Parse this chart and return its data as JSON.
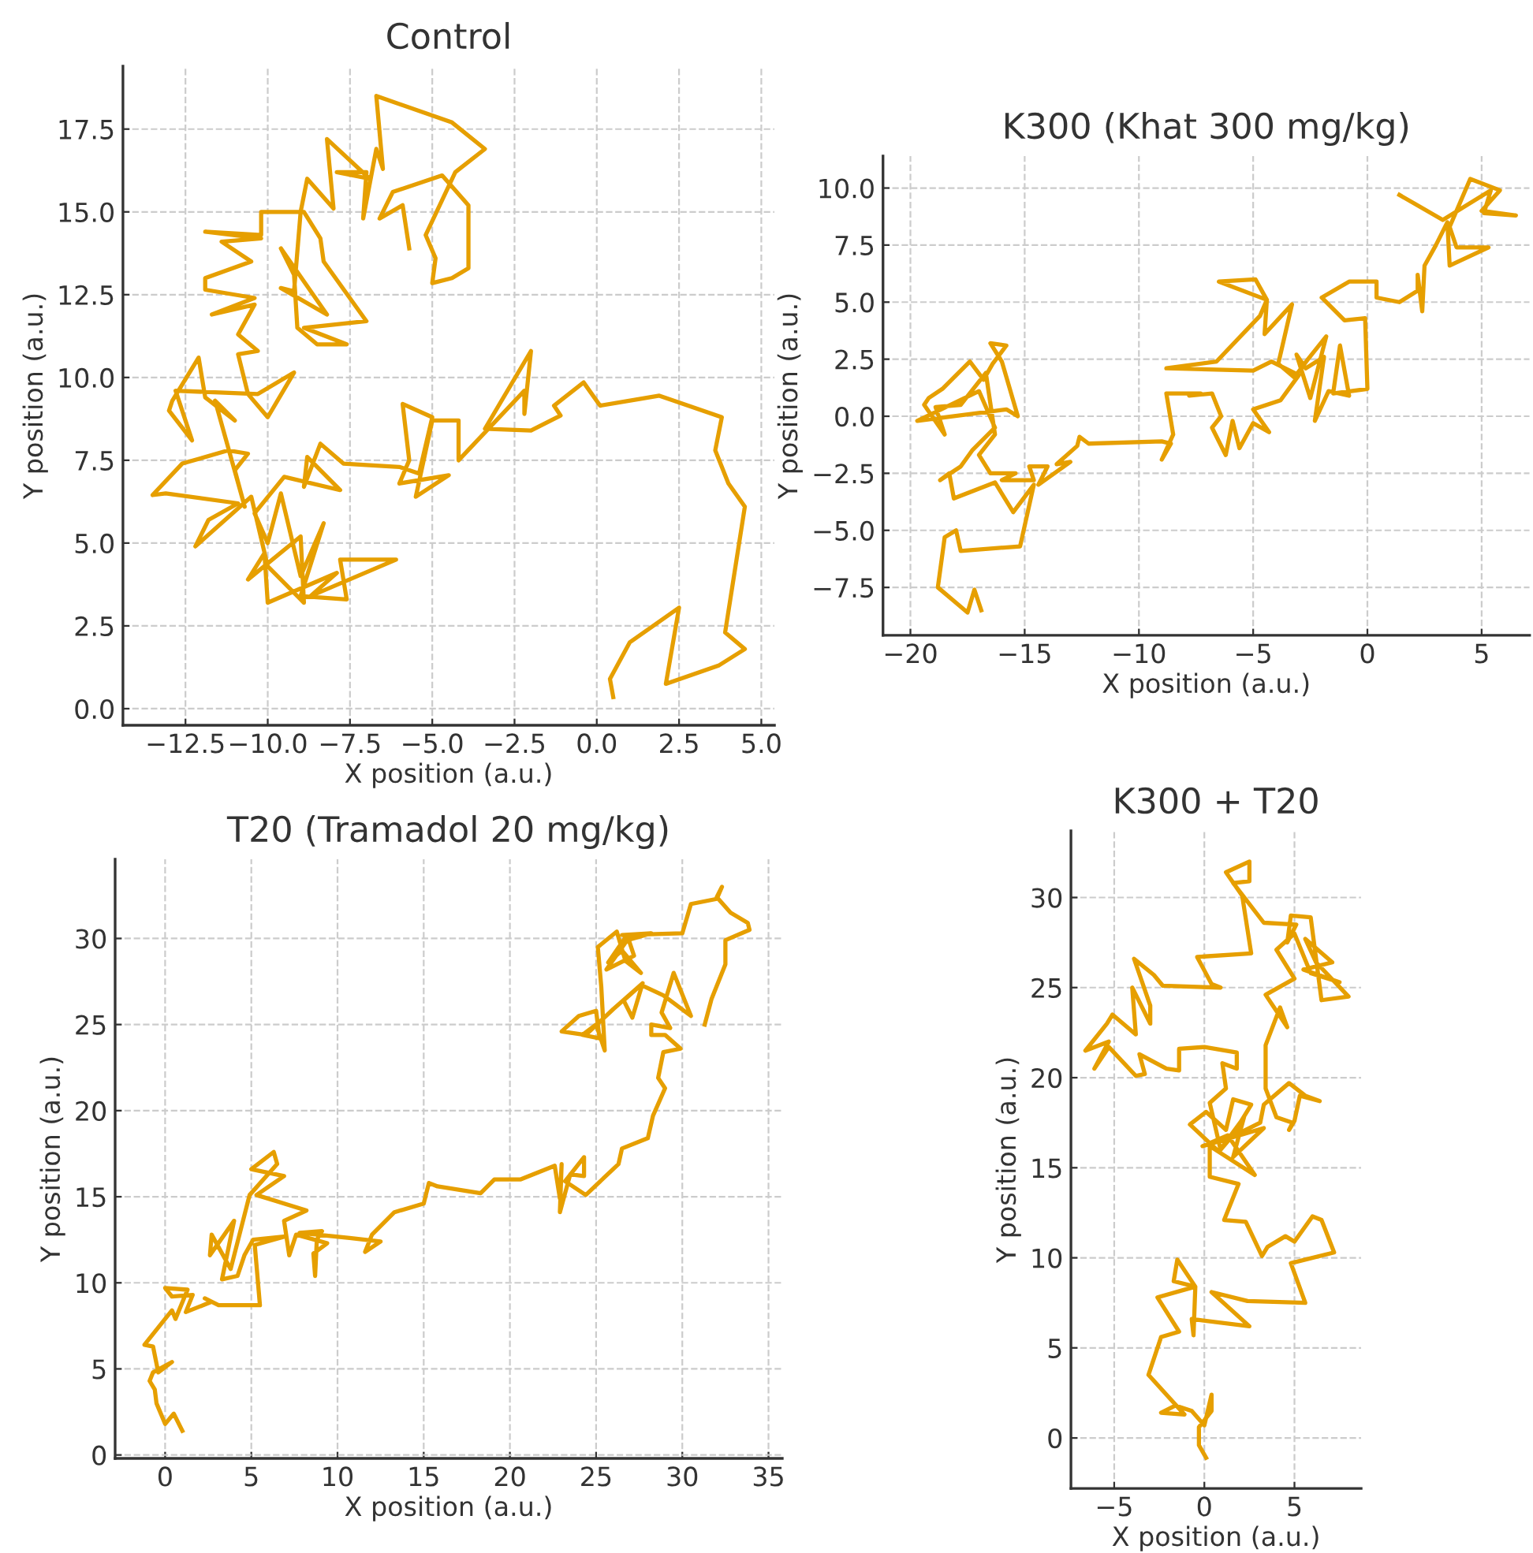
{
  "chart_data": [
    {
      "type": "line",
      "title": "Control",
      "xlabel": "X position (a.u.)",
      "ylabel": "Y position (a.u.)",
      "grid": true,
      "line_style": "solid",
      "xlim": [
        -14.4,
        5.4
      ],
      "ylim": [
        -0.5,
        19.4
      ],
      "xticks": [
        {
          "value": -12.5,
          "label": "−12.5"
        },
        {
          "value": -10.0,
          "label": "−10.0"
        },
        {
          "value": -7.5,
          "label": "−7.5"
        },
        {
          "value": -5.0,
          "label": "−5.0"
        },
        {
          "value": -2.5,
          "label": "−2.5"
        },
        {
          "value": 0,
          "label": "0.0"
        },
        2.5,
        {
          "value": 5,
          "label": "5.0"
        }
      ],
      "yticks": [
        {
          "value": 0,
          "label": "0.0"
        },
        2.5,
        {
          "value": 5,
          "label": "5.0"
        },
        7.5,
        {
          "value": 10,
          "label": "10.0"
        },
        12.5,
        {
          "value": 15,
          "label": "15.0"
        },
        17.5
      ],
      "series": [
        {
          "color": "#e69f00",
          "x": [
            0.5,
            0.4,
            1.0,
            2.5,
            2.1,
            3.7,
            4.5,
            3.9,
            4.5,
            4.0,
            3.6,
            3.8,
            1.9,
            0.1,
            -0.4,
            -1.3,
            -1.1,
            -2.0,
            -3.4,
            -2.0,
            -2.2,
            -2.2,
            -4.2,
            -4.2,
            -5.0,
            -5.5,
            -4.5,
            -6.0,
            -5.7,
            -5.9,
            -5.0,
            -5.4,
            -6.0,
            -7.7,
            -8.4,
            -8.9,
            -8.8,
            -7.8,
            -9.5,
            -10.4,
            -10.0,
            -9.6,
            -9.0,
            -8.3,
            -9.0,
            -7.6,
            -7.8,
            -6.1,
            -8.7,
            -7.9,
            -10.0,
            -10.1,
            -10.6,
            -9.0,
            -8.9,
            -10.0,
            -10.5,
            -12.2,
            -11.8,
            -10.9,
            -13.1,
            -13.5,
            -12.6,
            -11.2,
            -10.6,
            -11.0,
            -10.7,
            -11.6,
            -11.0,
            -11.9,
            -12.1,
            -12.9,
            -13.0,
            -12.3,
            -12.8,
            -10.3,
            -9.2,
            -10.0,
            -10.6,
            -10.9,
            -10.3,
            -10.9,
            -10.4,
            -11.7,
            -10.4,
            -11.9,
            -11.9,
            -10.5,
            -11.4,
            -10.2,
            -11.9,
            -10.2,
            -10.2,
            -8.9,
            -8.4,
            -8.3,
            -7.0,
            -8.9,
            -7.6,
            -8.5,
            -9.1,
            -9.2,
            -9.6,
            -8.2,
            -9.6,
            -9.2,
            -9.0,
            -8.8,
            -8.0,
            -8.2,
            -6.9,
            -7.9,
            -7.0,
            -7.1,
            -6.7,
            -6.5,
            -6.7,
            -4.4,
            -3.4,
            -4.3,
            -5.2,
            -4.9,
            -5.0,
            -4.4,
            -3.9,
            -3.9,
            -4.7,
            -6.2,
            -6.6,
            -5.9,
            -5.7
          ],
          "values": [
            0.35,
            0.9,
            2.0,
            3.05,
            0.75,
            1.3,
            1.8,
            2.3,
            6.1,
            6.8,
            7.8,
            8.8,
            9.45,
            9.15,
            9.85,
            9.15,
            8.85,
            8.4,
            8.45,
            10.8,
            8.9,
            9.6,
            7.5,
            8.7,
            8.7,
            6.4,
            7.05,
            6.8,
            7.5,
            9.2,
            8.8,
            7.1,
            7.3,
            7.4,
            8.0,
            6.7,
            7.6,
            6.6,
            7.0,
            5.9,
            5.0,
            6.5,
            4.0,
            5.6,
            3.4,
            3.3,
            4.5,
            4.5,
            3.4,
            4.1,
            3.2,
            4.7,
            3.9,
            5.2,
            3.2,
            4.3,
            6.4,
            4.9,
            5.7,
            6.2,
            6.5,
            6.45,
            7.4,
            7.8,
            7.7,
            7.2,
            6.1,
            9.3,
            8.7,
            9.4,
            10.6,
            9.3,
            9.0,
            8.1,
            9.6,
            9.5,
            10.15,
            8.8,
            9.5,
            10.7,
            10.8,
            11.3,
            12.2,
            11.9,
            12.4,
            12.65,
            13.0,
            13.5,
            14.1,
            14.2,
            14.4,
            14.3,
            15.0,
            15.0,
            14.2,
            13.5,
            11.7,
            11.5,
            11.0,
            11.0,
            11.5,
            13.1,
            13.9,
            11.9,
            12.7,
            12.6,
            15.0,
            16.0,
            15.1,
            17.2,
            16.0,
            16.2,
            16.2,
            14.8,
            16.9,
            16.3,
            18.5,
            17.7,
            16.9,
            16.2,
            14.3,
            13.6,
            12.85,
            13.0,
            13.3,
            15.2,
            16.1,
            15.6,
            14.8,
            15.2,
            13.9
          ]
        }
      ]
    },
    {
      "type": "line",
      "title": "K300 (Khat 300 mg/kg)",
      "xlabel": "X position (a.u.)",
      "ylabel": "Y position (a.u.)",
      "grid": true,
      "line_style": "solid",
      "xlim": [
        -21.2,
        7.1
      ],
      "ylim": [
        -9.6,
        11.4
      ],
      "xticks": [
        {
          "value": -20,
          "label": "−20"
        },
        {
          "value": -15,
          "label": "−15"
        },
        {
          "value": -10,
          "label": "−10"
        },
        {
          "value": -5,
          "label": "−5"
        },
        0,
        5
      ],
      "yticks": [
        {
          "value": -7.5,
          "label": "−7.5"
        },
        {
          "value": -5.0,
          "label": "−5.0"
        },
        {
          "value": -2.5,
          "label": "−2.5"
        },
        {
          "value": 0,
          "label": "0.0"
        },
        2.5,
        {
          "value": 5,
          "label": "5.0"
        },
        7.5,
        {
          "value": 10,
          "label": "10.0"
        }
      ],
      "series": [
        {
          "color": "#e69f00",
          "x": [
            -16.9,
            -17.2,
            -17.5,
            -18.8,
            -18.5,
            -18.0,
            -17.8,
            -15.2,
            -14.6,
            -15.5,
            -16.3,
            -18.1,
            -18.3,
            -18.7,
            -17.8,
            -17.3,
            -16.3,
            -17.0,
            -19.7,
            -15.8,
            -15.3,
            -16.0,
            -16.5,
            -15.8,
            -16.4,
            -16.8,
            -17.4,
            -18.6,
            -19.2,
            -19.4,
            -18.5,
            -18.9,
            -17.8,
            -16.7,
            -16.3,
            -17.0,
            -16.5,
            -15.4,
            -16.0,
            -14.6,
            -14.8,
            -14.0,
            -14.4,
            -13.0,
            -13.6,
            -12.7,
            -12.6,
            -12.2,
            -9.0,
            -8.6,
            -9.0,
            -8.5,
            -8.8,
            -7.3,
            -7.8,
            -6.8,
            -6.4,
            -6.8,
            -6.2,
            -5.9,
            -5.6,
            -5.0,
            -4.3,
            -5.0,
            -3.8,
            -3.0,
            -4.2,
            -5.0,
            -8.8,
            -6.6,
            -4.7,
            -4.4,
            -6.5,
            -4.9,
            -4.4,
            -4.5,
            -3.3,
            -3.9,
            -3.2,
            -2.6,
            -1.8,
            -2.5,
            -3.1,
            -2.7,
            -1.9,
            -2.3,
            -1.7,
            -0.8,
            -1.2,
            -1.5,
            0.0,
            -0.1,
            -1.0,
            -2.0,
            -0.8,
            0.4,
            0.4,
            1.4,
            2.2,
            2.2,
            2.4,
            2.5,
            3.0,
            3.5,
            3.6,
            5.3,
            3.9,
            3.6,
            4.5,
            5.8,
            5.0,
            6.5,
            5.1,
            5.4,
            3.3,
            1.4
          ],
          "values": [
            -8.5,
            -7.6,
            -8.6,
            -7.5,
            -5.3,
            -5.0,
            -5.9,
            -5.7,
            -3.0,
            -4.2,
            -2.9,
            -3.6,
            -2.5,
            -2.8,
            -2.2,
            -1.5,
            -0.5,
            1.1,
            -0.2,
            0.3,
            0.0,
            2.4,
            3.2,
            3.1,
            2.3,
            1.6,
            2.4,
            1.2,
            0.8,
            0.5,
            -0.8,
            0.4,
            0.5,
            1.9,
            -0.8,
            -1.7,
            -2.5,
            -2.5,
            -2.8,
            -2.8,
            -2.2,
            -2.2,
            -3.0,
            -2.0,
            -2.1,
            -1.3,
            -0.9,
            -1.2,
            -1.1,
            -1.2,
            -1.9,
            -0.8,
            1.0,
            1.0,
            0.9,
            1.0,
            0.0,
            -0.5,
            -1.7,
            -0.2,
            -1.4,
            -0.3,
            -0.7,
            0.3,
            0.7,
            1.8,
            2.4,
            2.0,
            2.1,
            2.4,
            4.4,
            5.1,
            5.9,
            6.0,
            5.1,
            3.6,
            4.9,
            2.3,
            1.7,
            2.5,
            3.5,
            0.8,
            2.7,
            2.1,
            2.6,
            -0.2,
            1.1,
            0.9,
            3.1,
            1.0,
            1.2,
            4.3,
            4.2,
            5.2,
            5.9,
            5.9,
            5.2,
            5.0,
            5.5,
            6.2,
            4.6,
            6.6,
            7.5,
            8.5,
            6.6,
            7.4,
            7.4,
            8.3,
            10.4,
            9.9,
            9.0,
            8.8,
            8.9,
            9.9,
            8.6,
            9.7
          ]
        }
      ]
    },
    {
      "type": "line",
      "title": "T20 (Tramadol 20 mg/kg)",
      "xlabel": "X position (a.u.)",
      "ylabel": "Y position (a.u.)",
      "grid": true,
      "line_style": "solid",
      "xlim": [
        -2.9,
        35.8
      ],
      "ylim": [
        -0.2,
        34.6
      ],
      "xticks": [
        0,
        5,
        10,
        15,
        20,
        25,
        30,
        35
      ],
      "yticks": [
        0,
        5,
        10,
        15,
        20,
        25,
        30
      ],
      "series": [
        {
          "color": "#e69f00",
          "x": [
            1.0,
            0.5,
            0.0,
            -0.5,
            -0.6,
            -0.9,
            -0.7,
            0.4,
            -0.4,
            -0.7,
            -1.2,
            0.4,
            0.6,
            1.3,
            0.0,
            0.4,
            1.6,
            1.2,
            2.7,
            2.3,
            3.1,
            5.5,
            5.2,
            7.0,
            5.1,
            4.6,
            4.2,
            3.3,
            4.0,
            2.6,
            2.7,
            3.8,
            4.9,
            6.5,
            6.3,
            5.0,
            6.9,
            5.3,
            8.2,
            6.9,
            7.2,
            7.6,
            9.4,
            8.6,
            8.7,
            8.8,
            9.1,
            7.8,
            10.7,
            12.5,
            11.6,
            12.0,
            13.3,
            15.0,
            15.3,
            15.8,
            18.3,
            19.1,
            20.6,
            22.6,
            22.9,
            23.0,
            22.9,
            23.5,
            24.3,
            24.3,
            23.2,
            24.4,
            26.3,
            26.5,
            28.0,
            28.3,
            29.0,
            28.6,
            28.9,
            29.9,
            29.0,
            28.2,
            28.2,
            29.3,
            28.8,
            29.5,
            30.5,
            28.9,
            27.6,
            26.6,
            27.1,
            27.7,
            26.0,
            24.4,
            23.0,
            24.0,
            25.0,
            25.2,
            24.2,
            25.0,
            25.5,
            25.3,
            25.1,
            26.2,
            26.7,
            27.6,
            26.5,
            25.7,
            26.8,
            27.2,
            25.6,
            26.8,
            28.2,
            26.5,
            30.0,
            30.5,
            32.0,
            32.3,
            32.0,
            32.8,
            33.8,
            33.9,
            32.5,
            32.5,
            31.7,
            31.3
          ],
          "values": [
            1.4,
            2.4,
            1.8,
            3.0,
            3.8,
            4.3,
            4.8,
            5.4,
            4.8,
            6.3,
            6.4,
            8.4,
            7.9,
            9.6,
            9.7,
            9.2,
            9.3,
            8.3,
            8.9,
            9.1,
            8.7,
            8.7,
            12.2,
            12.7,
            12.5,
            11.6,
            10.4,
            10.2,
            13.6,
            11.6,
            12.8,
            10.8,
            15.1,
            16.9,
            17.6,
            16.6,
            16.2,
            15.1,
            14.2,
            13.6,
            11.6,
            12.8,
            12.3,
            11.7,
            10.4,
            12.5,
            13.0,
            12.9,
            12.6,
            12.4,
            11.8,
            12.8,
            14.1,
            14.6,
            15.8,
            15.6,
            15.2,
            16.0,
            16.0,
            16.8,
            14.9,
            16.9,
            14.1,
            16.3,
            16.2,
            17.3,
            15.9,
            15.1,
            16.9,
            17.8,
            18.4,
            19.7,
            21.3,
            21.9,
            23.4,
            23.6,
            24.4,
            24.4,
            25.0,
            24.8,
            25.7,
            28.0,
            25.5,
            26.7,
            27.3,
            26.4,
            25.4,
            27.4,
            25.9,
            24.4,
            24.6,
            25.5,
            25.8,
            24.2,
            24.4,
            25.0,
            23.5,
            27.2,
            29.5,
            30.4,
            28.7,
            28.0,
            29.3,
            28.6,
            30.2,
            29.0,
            28.2,
            29.9,
            30.3,
            30.2,
            30.3,
            32.0,
            32.3,
            33.0,
            32.4,
            31.5,
            30.9,
            30.5,
            29.9,
            28.5,
            26.5,
            25.0
          ]
        }
      ]
    },
    {
      "type": "line",
      "title": "K300 + T20",
      "xlabel": "X position (a.u.)",
      "ylabel": "Y position (a.u.)",
      "grid": true,
      "line_style": "solid",
      "xlim": [
        -7.4,
        8.7
      ],
      "ylim": [
        -2.8,
        33.7
      ],
      "xticks": [
        {
          "value": -5,
          "label": "−5"
        },
        0,
        5
      ],
      "yticks": [
        0,
        5,
        10,
        15,
        20,
        25,
        30
      ],
      "series": [
        {
          "color": "#e69f00",
          "x": [
            0.1,
            -0.3,
            -0.3,
            0.4,
            0.4,
            0.0,
            -0.7,
            -1.6,
            -2.4,
            -1.1,
            -3.1,
            -2.4,
            -1.4,
            -2.6,
            -0.5,
            -1.7,
            -1.5,
            -0.5,
            -0.6,
            -0.7,
            2.5,
            0.4,
            2.4,
            5.6,
            4.8,
            7.2,
            6.5,
            6.0,
            5.0,
            4.5,
            3.5,
            3.2,
            2.3,
            1.1,
            1.9,
            0.3,
            0.3,
            2.8,
            1.3,
            -0.1,
            3.3,
            1.6,
            2.2,
            0.8,
            -0.8,
            0.1,
            1.2,
            1.6,
            2.6,
            1.5,
            3.1,
            3.3,
            4.7,
            5.6,
            6.4,
            5.3,
            5.0,
            4.7,
            4.9,
            4.0,
            3.4,
            3.4,
            4.2,
            4.6,
            3.4,
            5.0,
            4.0,
            5.0,
            5.9,
            7.5,
            5.5,
            7.1,
            5.6,
            6.2,
            8.0,
            6.5,
            5.9,
            4.8,
            4.6,
            5.1,
            3.3,
            1.6,
            2.5,
            2.5,
            1.2,
            2.1,
            2.6,
            -0.4,
            0.4,
            0.9,
            -2.3,
            -2.8,
            -3.9,
            -3.0,
            -3.0,
            -4.0,
            -3.8,
            -5.1,
            -5.4,
            -6.6,
            -5.3,
            -6.1,
            -5.3,
            -3.8,
            -3.3,
            -3.6,
            -2.1,
            -1.4,
            -1.4,
            0.0,
            1.8,
            1.8,
            1.0,
            1.2,
            0.3,
            0.9,
            2.0
          ],
          "values": [
            -1.1,
            -0.4,
            0.6,
            1.5,
            2.4,
            0.7,
            1.5,
            1.8,
            1.4,
            1.3,
            3.5,
            5.6,
            5.9,
            7.8,
            8.4,
            8.7,
            9.9,
            8.4,
            5.7,
            6.6,
            6.2,
            8.1,
            7.6,
            7.5,
            9.7,
            10.3,
            12.1,
            12.3,
            10.9,
            11.2,
            10.6,
            10.1,
            12.0,
            12.1,
            14.1,
            14.5,
            16.2,
            14.6,
            16.8,
            16.2,
            17.2,
            15.6,
            17.8,
            15.9,
            17.4,
            18.1,
            17.1,
            18.8,
            18.5,
            16.7,
            17.5,
            18.5,
            19.7,
            19.0,
            18.7,
            19.0,
            17.6,
            17.1,
            17.5,
            17.8,
            19.4,
            21.8,
            23.9,
            22.8,
            24.6,
            25.5,
            27.1,
            28.0,
            25.8,
            25.3,
            26.0,
            26.4,
            27.7,
            26.4,
            24.5,
            24.3,
            28.9,
            29.0,
            27.5,
            28.5,
            28.6,
            30.8,
            30.9,
            32.0,
            31.4,
            30.1,
            26.9,
            26.7,
            25.2,
            25.0,
            25.1,
            25.7,
            26.6,
            24.0,
            23.0,
            25.0,
            22.4,
            23.5,
            23.0,
            21.5,
            22.0,
            20.5,
            21.7,
            20.1,
            20.2,
            21.3,
            20.5,
            20.4,
            21.6,
            21.7,
            21.4,
            20.5,
            20.8,
            19.4,
            18.6,
            16.0,
            17.3
          ]
        }
      ]
    }
  ]
}
